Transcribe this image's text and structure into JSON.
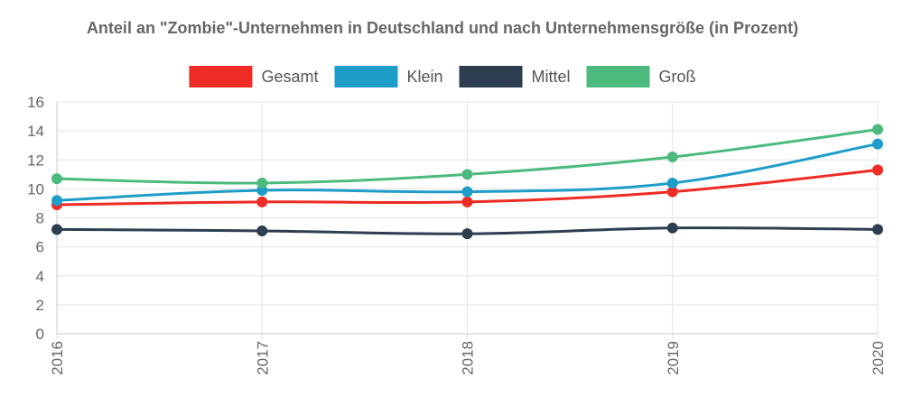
{
  "chart_data": {
    "type": "line",
    "title": "Anteil an \"Zombie\"-Unternehmen in Deutschland und nach Unternehmensgröße (in Prozent)",
    "xlabel": "",
    "ylabel": "",
    "categories": [
      "2016",
      "2017",
      "2018",
      "2019",
      "2020"
    ],
    "ylim": [
      0,
      16
    ],
    "yticks": [
      0,
      2,
      4,
      6,
      8,
      10,
      12,
      14,
      16
    ],
    "grid": true,
    "legend_position": "top-center",
    "series": [
      {
        "name": "Gesamt",
        "color": "#ee2b24",
        "values": [
          8.9,
          9.1,
          9.1,
          9.8,
          11.3
        ]
      },
      {
        "name": "Klein",
        "color": "#1f9dc9",
        "values": [
          9.2,
          9.9,
          9.8,
          10.4,
          13.1
        ]
      },
      {
        "name": "Mittel",
        "color": "#2c3e50",
        "values": [
          7.2,
          7.1,
          6.9,
          7.3,
          7.2
        ]
      },
      {
        "name": "Groß",
        "color": "#4cba7d",
        "values": [
          10.7,
          10.4,
          11.0,
          12.2,
          14.1
        ]
      }
    ]
  }
}
